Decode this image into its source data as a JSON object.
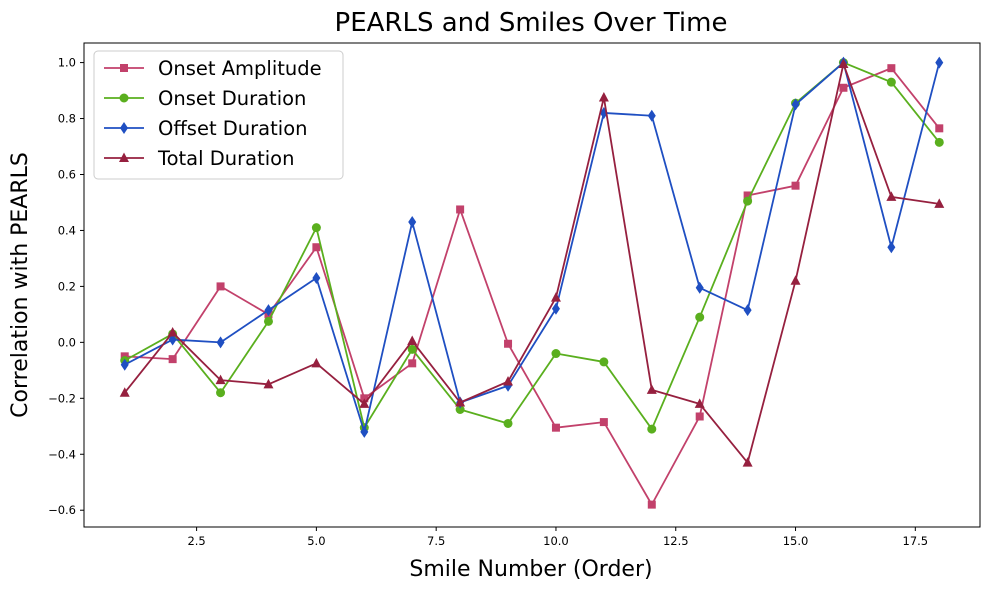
{
  "chart_data": {
    "type": "line",
    "title": "PEARLS and Smiles Over Time",
    "xlabel": "Smile Number (Order)",
    "ylabel": "Correlation with PEARLS",
    "xlim": [
      0.15,
      18.85
    ],
    "ylim": [
      -0.66,
      1.07
    ],
    "xticks": [
      2.5,
      5.0,
      7.5,
      10.0,
      12.5,
      15.0,
      17.5
    ],
    "xtick_labels": [
      "2.5",
      "5.0",
      "7.5",
      "10.0",
      "12.5",
      "15.0",
      "17.5"
    ],
    "yticks": [
      -0.6,
      -0.4,
      -0.2,
      0.0,
      0.2,
      0.4,
      0.6,
      0.8,
      1.0
    ],
    "ytick_labels": [
      "−0.6",
      "−0.4",
      "−0.2",
      "0.0",
      "0.2",
      "0.4",
      "0.6",
      "0.8",
      "1.0"
    ],
    "legend_position": "top-left",
    "grid": false,
    "x": [
      1,
      2,
      3,
      4,
      5,
      6,
      7,
      8,
      9,
      10,
      11,
      12,
      13,
      14,
      15,
      16,
      17,
      18
    ],
    "series": [
      {
        "name": "Onset Amplitude",
        "color": "#c2416b",
        "marker": "square",
        "values": [
          -0.05,
          -0.06,
          0.2,
          0.1,
          0.34,
          -0.2,
          -0.075,
          0.475,
          -0.005,
          -0.305,
          -0.285,
          -0.58,
          -0.265,
          0.525,
          0.56,
          0.91,
          0.98,
          0.765
        ]
      },
      {
        "name": "Onset Duration",
        "color": "#5aaf1e",
        "marker": "circle",
        "values": [
          -0.065,
          0.03,
          -0.18,
          0.075,
          0.41,
          -0.305,
          -0.025,
          -0.24,
          -0.29,
          -0.04,
          -0.07,
          -0.31,
          0.09,
          0.505,
          0.855,
          1.0,
          0.93,
          0.715
        ]
      },
      {
        "name": "Offset Duration",
        "color": "#1f4fc2",
        "marker": "diamond",
        "values": [
          -0.08,
          0.01,
          0.0,
          0.115,
          0.23,
          -0.32,
          0.43,
          -0.215,
          -0.155,
          0.12,
          0.82,
          0.81,
          0.195,
          0.115,
          0.85,
          1.0,
          0.34,
          1.0
        ]
      },
      {
        "name": "Total Duration",
        "color": "#96203f",
        "marker": "triangle",
        "values": [
          -0.18,
          0.035,
          -0.135,
          -0.15,
          -0.075,
          -0.22,
          0.005,
          -0.215,
          -0.14,
          0.16,
          0.875,
          -0.17,
          -0.22,
          -0.43,
          0.22,
          0.995,
          0.52,
          0.495
        ]
      }
    ]
  }
}
